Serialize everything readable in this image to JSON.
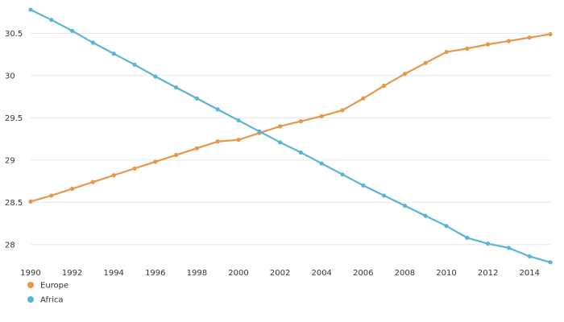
{
  "chart_data": {
    "type": "line",
    "title": "",
    "xlabel": "",
    "ylabel": "",
    "grid": true,
    "legend_position": "bottom-left",
    "xlim": [
      1990,
      2015
    ],
    "ylim": [
      27.75,
      30.8
    ],
    "x_ticks": [
      1990,
      1992,
      1994,
      1996,
      1998,
      2000,
      2002,
      2004,
      2006,
      2008,
      2010,
      2012,
      2014
    ],
    "x_tick_labels": [
      "1990",
      "1992",
      "1994",
      "1996",
      "1998",
      "2000",
      "2002",
      "2004",
      "2006",
      "2008",
      "2010",
      "2012",
      "2014"
    ],
    "y_ticks": [
      28,
      28.5,
      29,
      29.5,
      30,
      30.5
    ],
    "y_tick_labels": [
      "28",
      "28.5",
      "29",
      "29.5",
      "30",
      "30.5"
    ],
    "x": [
      1990,
      1991,
      1992,
      1993,
      1994,
      1995,
      1996,
      1997,
      1998,
      1999,
      2000,
      2001,
      2002,
      2003,
      2004,
      2005,
      2006,
      2007,
      2008,
      2009,
      2010,
      2011,
      2012,
      2013,
      2014,
      2015
    ],
    "series": [
      {
        "name": "Europe",
        "color": "#e8964a",
        "values": [
          28.51,
          28.58,
          28.66,
          28.74,
          28.82,
          28.9,
          28.98,
          29.06,
          29.14,
          29.22,
          29.24,
          29.32,
          29.4,
          29.46,
          29.52,
          29.59,
          29.73,
          29.88,
          30.02,
          30.15,
          30.28,
          30.32,
          30.37,
          30.41,
          30.45,
          30.49
        ]
      },
      {
        "name": "Africa",
        "color": "#5ab4d6",
        "values": [
          30.78,
          30.66,
          30.53,
          30.39,
          30.26,
          30.13,
          29.99,
          29.86,
          29.73,
          29.6,
          29.47,
          29.34,
          29.21,
          29.09,
          28.96,
          28.83,
          28.7,
          28.58,
          28.46,
          28.34,
          28.22,
          28.08,
          28.01,
          27.96,
          27.86,
          27.79
        ]
      }
    ]
  }
}
